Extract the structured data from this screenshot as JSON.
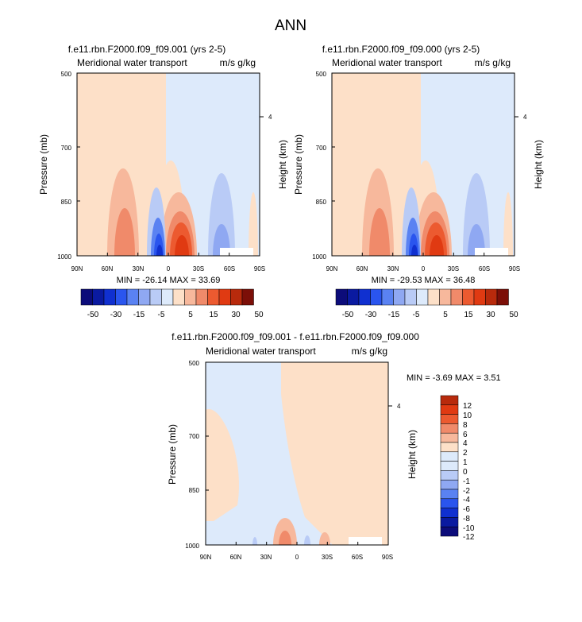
{
  "page_title": "ANN",
  "palette": {
    "colors": [
      "#0c0c7a",
      "#0a1aa0",
      "#1030d0",
      "#2a55ee",
      "#5a82f2",
      "#8fa8f2",
      "#b9cbf6",
      "#ddeafb",
      "#fde0c8",
      "#f7b89c",
      "#f08a6a",
      "#ec5a30",
      "#e03a12",
      "#b82a0c",
      "#7c0f08"
    ],
    "neutral_top": "#dceafb"
  },
  "panels": [
    {
      "title": "f.e11.rbn.F2000.f09_f09.001 (yrs 2-5)",
      "left_label": "Meridional water transport",
      "right_label": "m/s g/kg",
      "ylabel": "Pressure (mb)",
      "y2label": "Height (km)",
      "y_ticks": [
        "500",
        "700",
        "850",
        "1000"
      ],
      "y2_ticks": [
        "4"
      ],
      "x_ticks": [
        "90N",
        "60N",
        "30N",
        "0",
        "30S",
        "60S",
        "90S"
      ],
      "stats": "MIN = -26.14  MAX = 33.69"
    },
    {
      "title": "f.e11.rbn.F2000.f09_f09.000 (yrs 2-5)",
      "left_label": "Meridional water transport",
      "right_label": "m/s g/kg",
      "ylabel": "Pressure (mb)",
      "y2label": "Height (km)",
      "y_ticks": [
        "500",
        "700",
        "850",
        "1000"
      ],
      "y2_ticks": [
        "4"
      ],
      "x_ticks": [
        "90N",
        "60N",
        "30N",
        "0",
        "30S",
        "60S",
        "90S"
      ],
      "stats": "MIN = -29.53  MAX = 36.48"
    },
    {
      "title": "f.e11.rbn.F2000.f09_f09.001 - f.e11.rbn.F2000.f09_f09.000",
      "left_label": "Meridional water transport",
      "right_label": "m/s g/kg",
      "ylabel": "Pressure (mb)",
      "y2label": "Height (km)",
      "y_ticks": [
        "500",
        "700",
        "850",
        "1000"
      ],
      "y2_ticks": [
        "4"
      ],
      "x_ticks": [
        "90N",
        "60N",
        "30N",
        "0",
        "30S",
        "60S",
        "90S"
      ],
      "stats": "MIN = -3.69  MAX =  3.51"
    }
  ],
  "colorbars": {
    "top_labels": [
      "-50",
      "-30",
      "-15",
      "-5",
      "5",
      "15",
      "30",
      "50"
    ],
    "diff_labels": [
      "12",
      "10",
      "8",
      "6",
      "4",
      "2",
      "1",
      "0",
      "-1",
      "-2",
      "-4",
      "-6",
      "-8",
      "-10",
      "-12"
    ]
  },
  "chart_data": [
    {
      "type": "heatmap",
      "title": "f.e11.rbn.F2000.f09_f09.001 (yrs 2-5)",
      "xlabel": "",
      "ylabel": "Pressure (mb)",
      "y2label": "Height (km)",
      "x_categories": [
        "90N",
        "60N",
        "30N",
        "0",
        "30S",
        "60S",
        "90S"
      ],
      "y_ticks": [
        500,
        700,
        850,
        1000
      ],
      "ylim": [
        1000,
        500
      ],
      "levels": [
        -50,
        -30,
        -15,
        -5,
        5,
        15,
        30,
        50
      ],
      "min": -26.14,
      "max": 33.69
    },
    {
      "type": "heatmap",
      "title": "f.e11.rbn.F2000.f09_f09.000 (yrs 2-5)",
      "xlabel": "",
      "ylabel": "Pressure (mb)",
      "y2label": "Height (km)",
      "x_categories": [
        "90N",
        "60N",
        "30N",
        "0",
        "30S",
        "60S",
        "90S"
      ],
      "y_ticks": [
        500,
        700,
        850,
        1000
      ],
      "ylim": [
        1000,
        500
      ],
      "levels": [
        -50,
        -30,
        -15,
        -5,
        5,
        15,
        30,
        50
      ],
      "min": -29.53,
      "max": 36.48
    },
    {
      "type": "heatmap",
      "title": "f.e11.rbn.F2000.f09_f09.001 - f.e11.rbn.F2000.f09_f09.000",
      "xlabel": "",
      "ylabel": "Pressure (mb)",
      "y2label": "Height (km)",
      "x_categories": [
        "90N",
        "60N",
        "30N",
        "0",
        "30S",
        "60S",
        "90S"
      ],
      "y_ticks": [
        500,
        700,
        850,
        1000
      ],
      "ylim": [
        1000,
        500
      ],
      "levels": [
        -12,
        -10,
        -8,
        -6,
        -4,
        -2,
        -1,
        0,
        1,
        2,
        4,
        6,
        8,
        10,
        12
      ],
      "min": -3.69,
      "max": 3.51
    }
  ]
}
